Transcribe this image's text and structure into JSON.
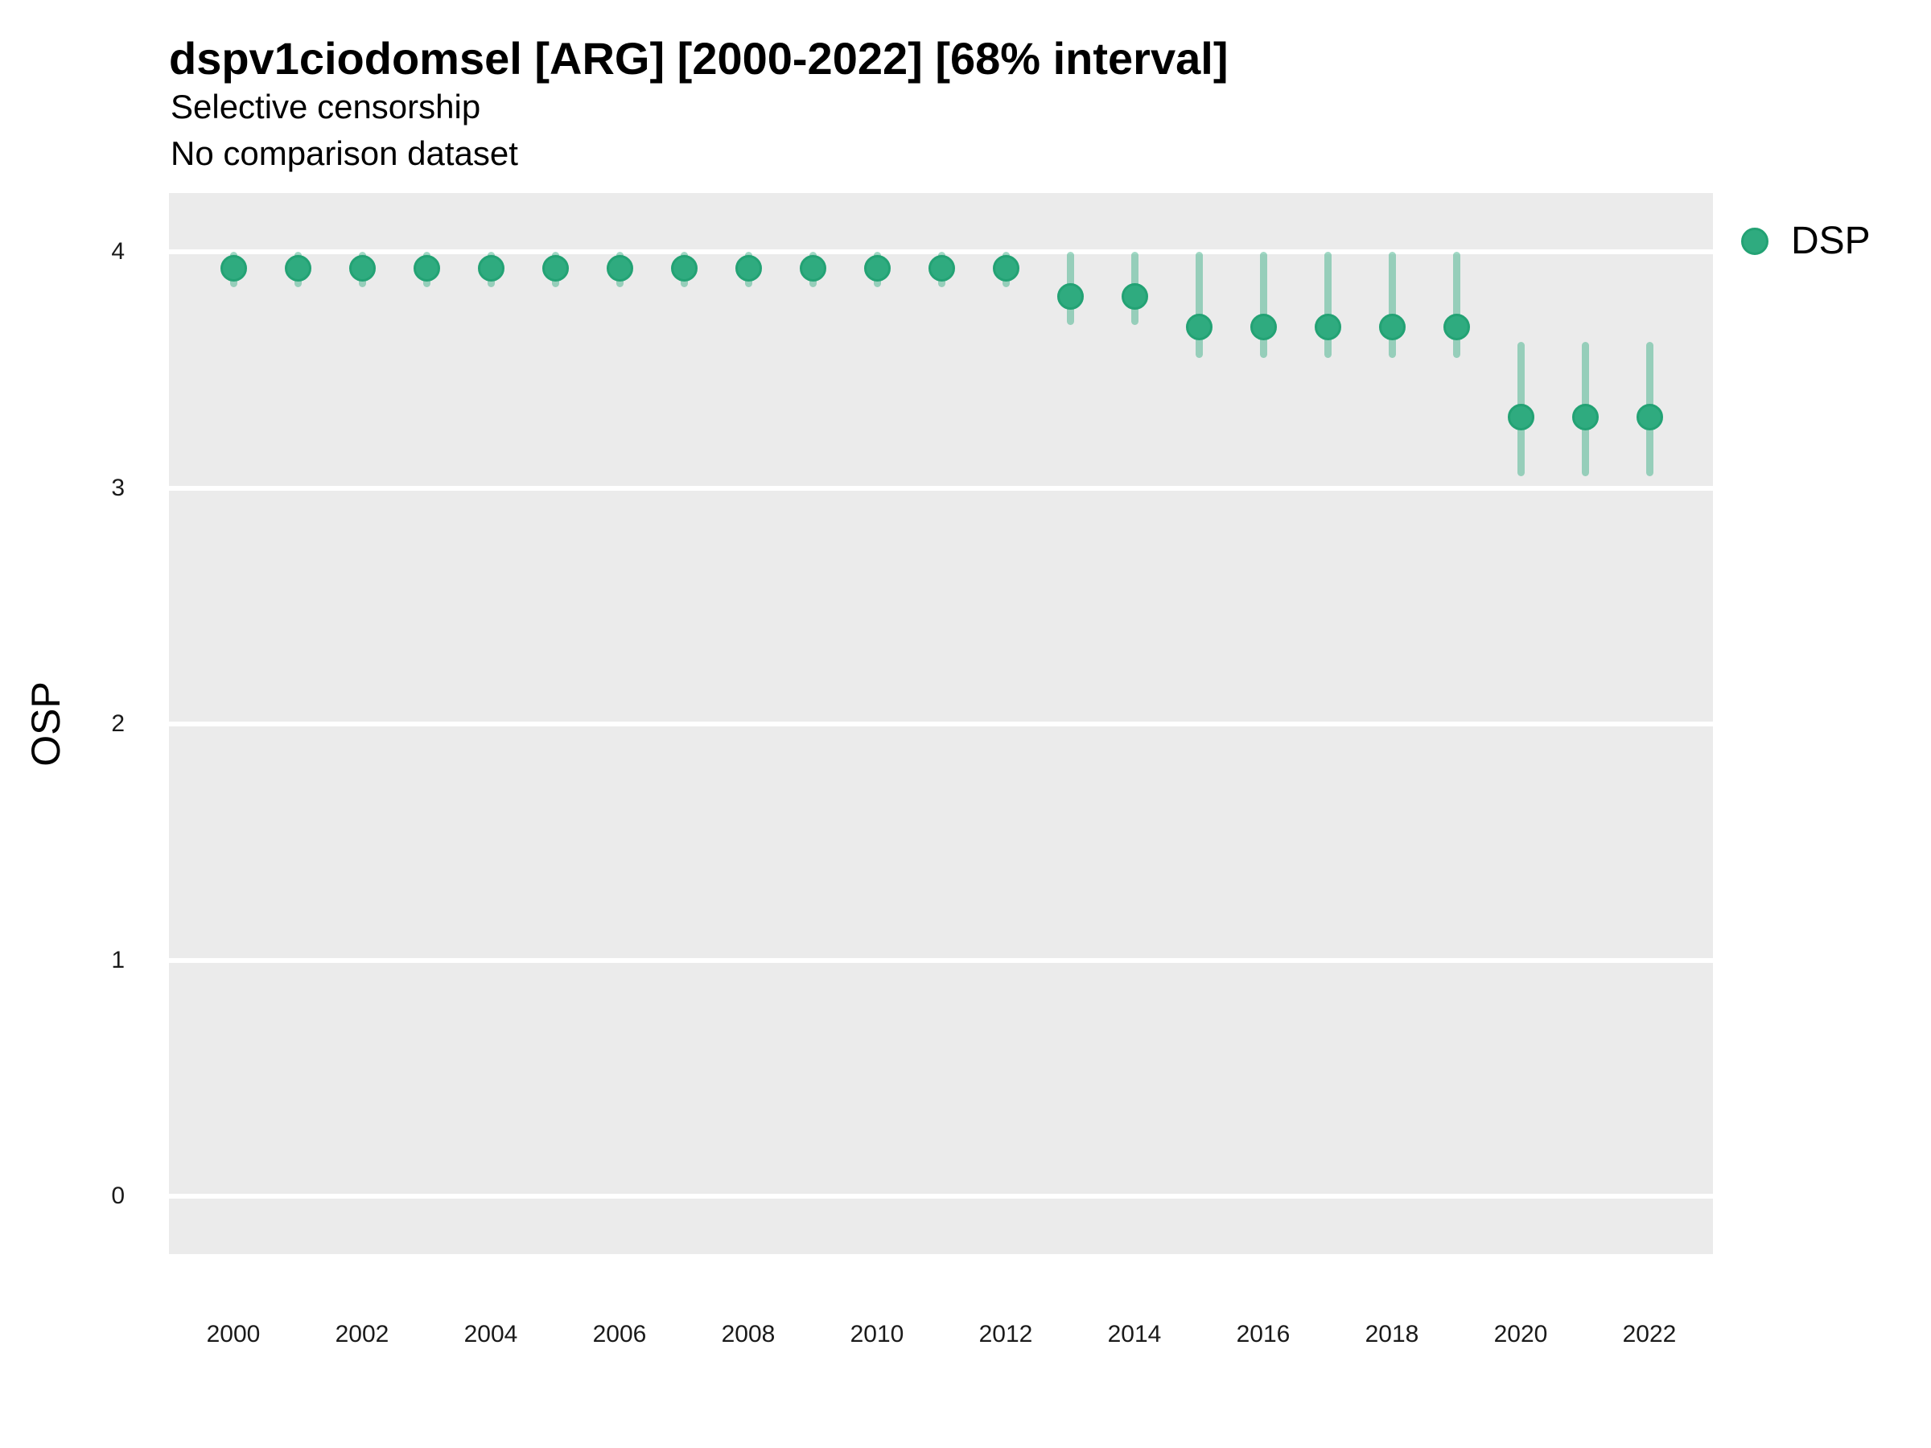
{
  "chart_data": {
    "type": "scatter",
    "title": "dspv1ciodomsel [ARG] [2000-2022] [68% interval]",
    "subtitle1": "Selective censorship",
    "subtitle2": "No comparison dataset",
    "ylabel": "OSP",
    "xlabel": "",
    "interval": "68%",
    "legend": [
      {
        "name": "DSP"
      }
    ],
    "legend_position": "top-right-outside",
    "grid": "horizontal-major-only",
    "ylim": [
      -0.25,
      4.25
    ],
    "yticks": [
      4,
      3,
      2,
      1,
      0
    ],
    "xticks": [
      2000,
      2002,
      2004,
      2006,
      2008,
      2010,
      2012,
      2014,
      2016,
      2018,
      2020,
      2022
    ],
    "series": [
      {
        "name": "DSP",
        "points": [
          {
            "year": 2000,
            "est": 3.93,
            "lo": 3.85,
            "hi": 4.0
          },
          {
            "year": 2001,
            "est": 3.93,
            "lo": 3.85,
            "hi": 4.0
          },
          {
            "year": 2002,
            "est": 3.93,
            "lo": 3.85,
            "hi": 4.0
          },
          {
            "year": 2003,
            "est": 3.93,
            "lo": 3.85,
            "hi": 4.0
          },
          {
            "year": 2004,
            "est": 3.93,
            "lo": 3.85,
            "hi": 4.0
          },
          {
            "year": 2005,
            "est": 3.93,
            "lo": 3.85,
            "hi": 4.0
          },
          {
            "year": 2006,
            "est": 3.93,
            "lo": 3.85,
            "hi": 4.0
          },
          {
            "year": 2007,
            "est": 3.93,
            "lo": 3.85,
            "hi": 4.0
          },
          {
            "year": 2008,
            "est": 3.93,
            "lo": 3.85,
            "hi": 4.0
          },
          {
            "year": 2009,
            "est": 3.93,
            "lo": 3.85,
            "hi": 4.0
          },
          {
            "year": 2010,
            "est": 3.93,
            "lo": 3.85,
            "hi": 4.0
          },
          {
            "year": 2011,
            "est": 3.93,
            "lo": 3.85,
            "hi": 4.0
          },
          {
            "year": 2012,
            "est": 3.93,
            "lo": 3.85,
            "hi": 4.0
          },
          {
            "year": 2013,
            "est": 3.81,
            "lo": 3.69,
            "hi": 4.0
          },
          {
            "year": 2014,
            "est": 3.81,
            "lo": 3.69,
            "hi": 4.0
          },
          {
            "year": 2015,
            "est": 3.68,
            "lo": 3.55,
            "hi": 4.0
          },
          {
            "year": 2016,
            "est": 3.68,
            "lo": 3.55,
            "hi": 4.0
          },
          {
            "year": 2017,
            "est": 3.68,
            "lo": 3.55,
            "hi": 4.0
          },
          {
            "year": 2018,
            "est": 3.68,
            "lo": 3.55,
            "hi": 4.0
          },
          {
            "year": 2019,
            "est": 3.68,
            "lo": 3.55,
            "hi": 4.0
          },
          {
            "year": 2020,
            "est": 3.3,
            "lo": 3.05,
            "hi": 3.62
          },
          {
            "year": 2021,
            "est": 3.3,
            "lo": 3.05,
            "hi": 3.62
          },
          {
            "year": 2022,
            "est": 3.3,
            "lo": 3.05,
            "hi": 3.62
          }
        ]
      }
    ]
  },
  "colors": {
    "point_fill": "#2fab7f",
    "point_border": "#23a274",
    "error_bar": "rgba(47,171,127,0.45)",
    "panel_background": "#ebebeb",
    "gridline": "#ffffff",
    "title_text": "#000000",
    "axis_text": "#1a1a1a"
  }
}
